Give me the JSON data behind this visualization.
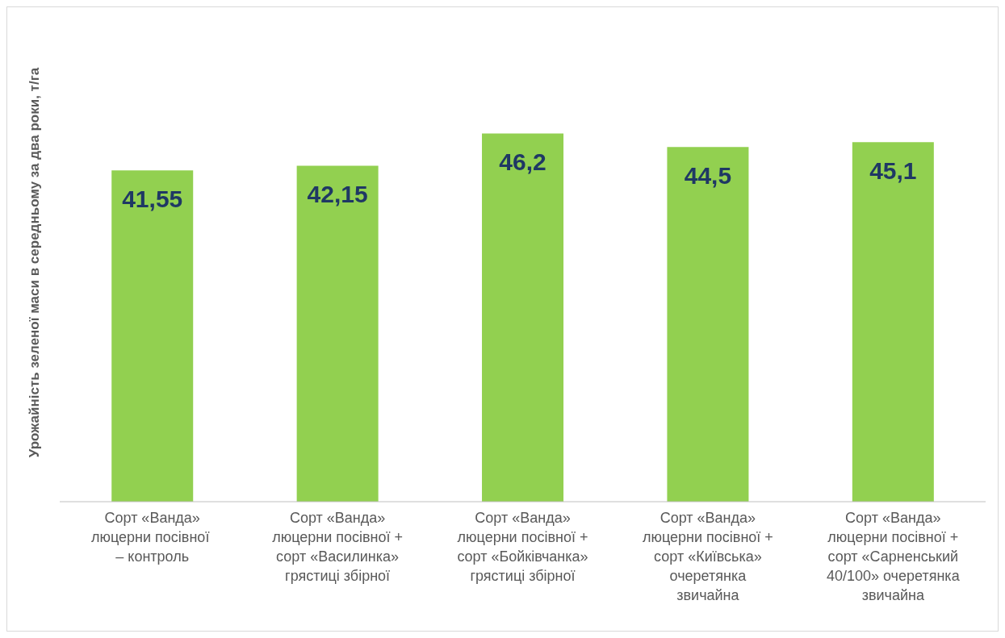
{
  "chart_data": {
    "type": "bar",
    "ylabel": "Урожайність зеленої маси в середньому за два роки, т/га",
    "categories": [
      "Сорт «Ванда» люцерни посівної  – контроль",
      "Сорт «Ванда» люцерни посівної + сорт «Василинка» грястиці збірної",
      "Сорт «Ванда» люцерни посівної + сорт «Бойківчанка» грястиці збірної",
      "Сорт «Ванда» люцерни посівної + сорт «Київська» очеретянка звичайна",
      "Сорт «Ванда» люцерни посівної + сорт «Сарненський 40/100» очеретянка звичайна"
    ],
    "values": [
      41.55,
      42.15,
      46.2,
      44.5,
      45.1
    ],
    "value_labels": [
      "41,55",
      "42,15",
      "46,2",
      "44,5",
      "45,1"
    ],
    "color": "#92d050",
    "tick_labels": "x",
    "grid": false,
    "legend": false
  }
}
